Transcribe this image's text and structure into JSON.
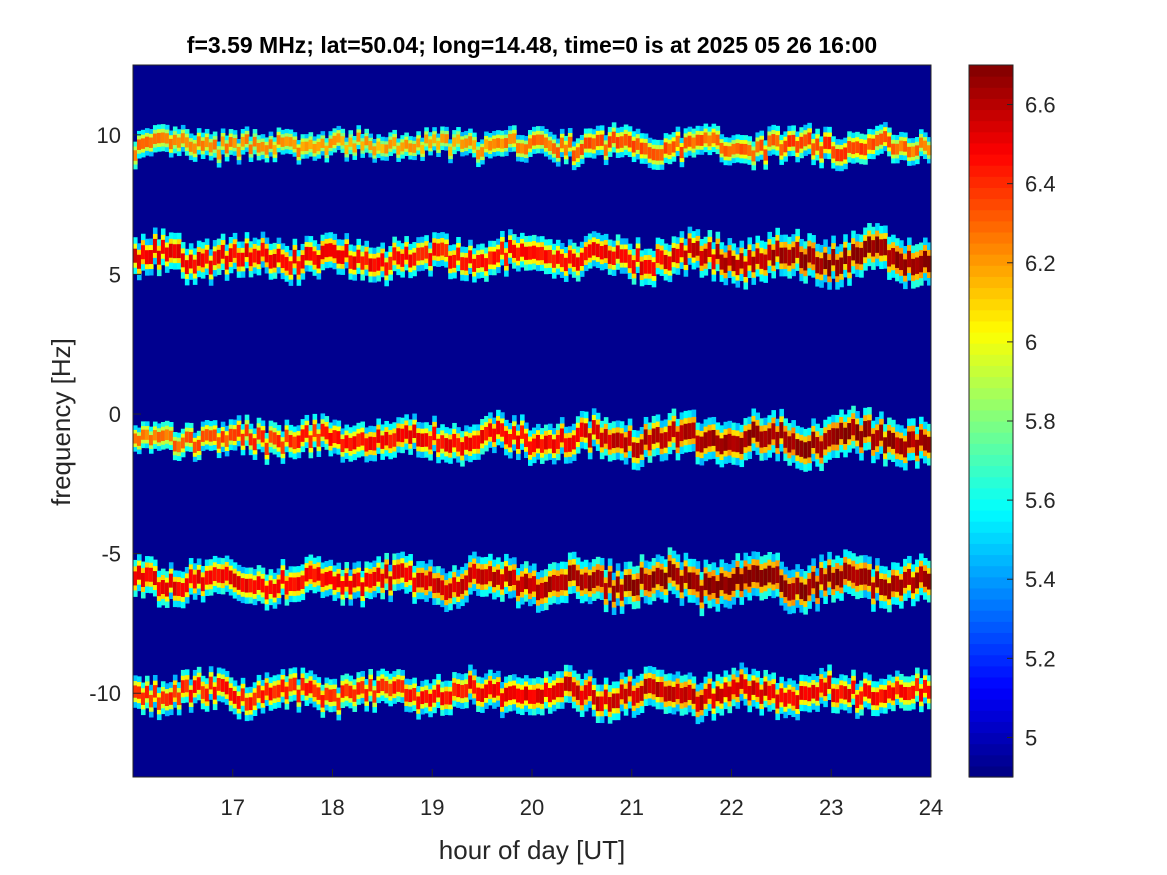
{
  "chart_data": {
    "type": "heatmap",
    "title": "f=3.59 MHz;  lat=50.04; long=14.48, time=0 is at 2025 05 26 16:00",
    "xlabel": "hour of day [UT]",
    "ylabel": "frequency [Hz]",
    "xlim": [
      16,
      24
    ],
    "ylim": [
      -13,
      12.5
    ],
    "x_ticks": [
      17,
      18,
      19,
      20,
      21,
      22,
      23,
      24
    ],
    "x_tick_labels": [
      "17",
      "18",
      "19",
      "20",
      "21",
      "22",
      "23",
      "24"
    ],
    "y_ticks": [
      10,
      5,
      0,
      -5,
      -10
    ],
    "y_tick_labels": [
      "10",
      "5",
      "0",
      "-5",
      "-10"
    ],
    "colormap": "jet",
    "background_color": "#00008f",
    "colorbar": {
      "range": [
        4.9,
        6.7
      ],
      "ticks": [
        6.6,
        6.4,
        6.2,
        6,
        5.8,
        5.6,
        5.4,
        5.2,
        5
      ],
      "tick_labels": [
        "6.6",
        "6.4",
        "6.2",
        "6",
        "5.8",
        "5.6",
        "5.4",
        "5.2",
        "5"
      ]
    },
    "series": [
      {
        "center_freq_hz": 9.6,
        "intensity": [
          [
            16.0,
            0.45
          ],
          [
            17.5,
            0.35
          ],
          [
            19.0,
            0.3
          ],
          [
            21.0,
            0.55
          ],
          [
            22.0,
            0.45
          ],
          [
            23.0,
            0.6
          ],
          [
            24.0,
            0.4
          ]
        ]
      },
      {
        "center_freq_hz": 5.6,
        "intensity": [
          [
            16.0,
            0.75
          ],
          [
            18.0,
            0.7
          ],
          [
            19.0,
            0.65
          ],
          [
            21.0,
            0.7
          ],
          [
            22.0,
            0.85
          ],
          [
            23.0,
            0.95
          ],
          [
            24.0,
            0.95
          ]
        ]
      },
      {
        "center_freq_hz": -0.9,
        "intensity": [
          [
            16.0,
            0.4
          ],
          [
            17.0,
            0.55
          ],
          [
            18.5,
            0.7
          ],
          [
            20.0,
            0.7
          ],
          [
            21.5,
            0.9
          ],
          [
            23.0,
            0.95
          ],
          [
            24.0,
            0.9
          ]
        ]
      },
      {
        "center_freq_hz": -6.0,
        "intensity": [
          [
            16.0,
            0.75
          ],
          [
            18.0,
            0.7
          ],
          [
            19.0,
            0.8
          ],
          [
            20.5,
            0.9
          ],
          [
            22.0,
            1.0
          ],
          [
            23.0,
            0.95
          ],
          [
            24.0,
            0.9
          ]
        ]
      },
      {
        "center_freq_hz": -10.0,
        "intensity": [
          [
            16.0,
            0.6
          ],
          [
            17.0,
            0.65
          ],
          [
            18.5,
            0.6
          ],
          [
            20.0,
            0.75
          ],
          [
            21.5,
            0.85
          ],
          [
            23.0,
            0.7
          ],
          [
            24.0,
            0.65
          ]
        ]
      }
    ]
  }
}
